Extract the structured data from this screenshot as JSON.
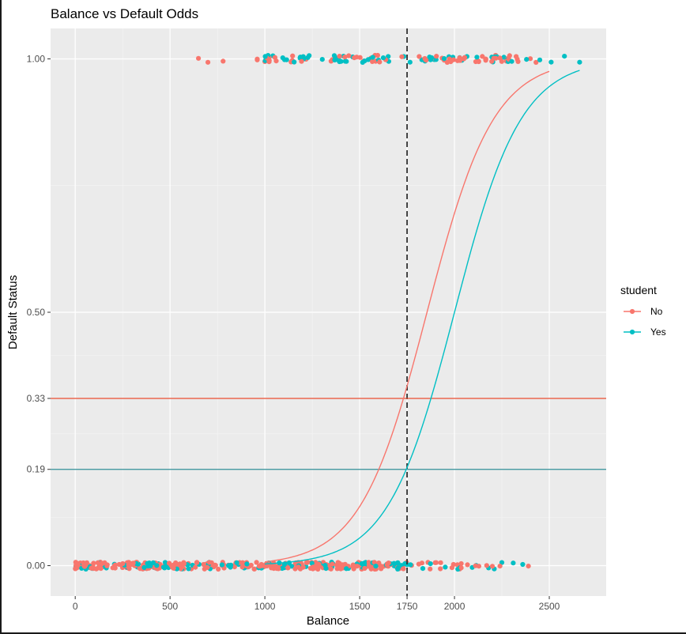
{
  "chart_data": {
    "type": "scatter",
    "title": "Balance vs Default Odds",
    "xlabel": "Balance",
    "ylabel": "Default Status",
    "xlim": [
      -130,
      2800
    ],
    "ylim": [
      -0.06,
      1.06
    ],
    "x_ticks": [
      0,
      500,
      1000,
      1500,
      1750,
      2000,
      2500
    ],
    "x_tick_labels": [
      "0",
      "500",
      "1000",
      "1500",
      "1750",
      "2000",
      "2500"
    ],
    "y_ticks": [
      0,
      0.19,
      0.33,
      0.5,
      1.0
    ],
    "y_tick_labels": [
      "0.00",
      "0.19",
      "0.33",
      "0.50",
      "1.00"
    ],
    "grid": true,
    "legend": {
      "title": "student",
      "position": "right",
      "entries": [
        {
          "label": "No",
          "color": "#F8766D"
        },
        {
          "label": "Yes",
          "color": "#00BFC4"
        }
      ]
    },
    "reference_lines": [
      {
        "orientation": "vertical",
        "x": 1750,
        "style": "dashed",
        "color": "#333333"
      },
      {
        "orientation": "horizontal",
        "y": 0.33,
        "color": "#E8492E"
      },
      {
        "orientation": "horizontal",
        "y": 0.19,
        "color": "#2F8C95"
      }
    ],
    "curves": [
      {
        "name": "No",
        "color": "#F8766D",
        "x_range": [
          1000,
          2500
        ],
        "midpoint": 1855,
        "slope": 0.0057
      },
      {
        "name": "Yes",
        "color": "#00BFC4",
        "x_range": [
          1000,
          2660
        ],
        "midpoint": 2000,
        "slope": 0.0057
      }
    ],
    "series": [
      {
        "name": "No",
        "color": "#F8766D",
        "y_value": 0,
        "x_min": 0,
        "x_max": 2390
      },
      {
        "name": "Yes",
        "color": "#00BFC4",
        "y_value": 0,
        "x_min": 0,
        "x_max": 2360
      },
      {
        "name": "No",
        "color": "#F8766D",
        "y_value": 1,
        "x_min": 650,
        "x_max": 2430
      },
      {
        "name": "Yes",
        "color": "#00BFC4",
        "y_value": 1,
        "x_min": 1010,
        "x_max": 2660
      }
    ]
  }
}
